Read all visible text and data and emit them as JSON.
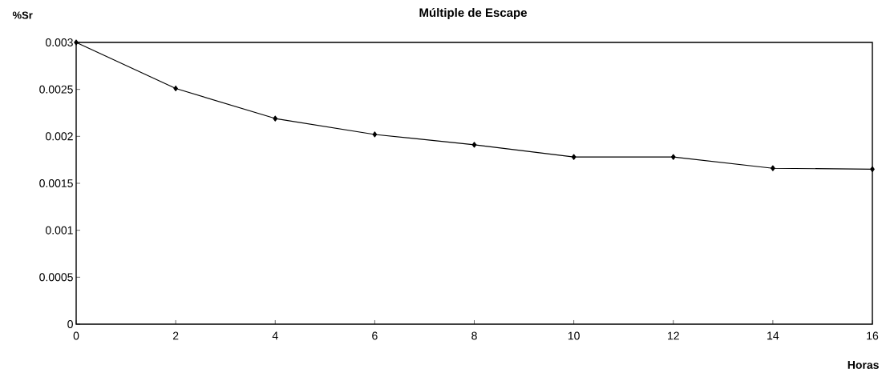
{
  "chart_data": {
    "type": "line",
    "title": "Múltiple de Escape",
    "xlabel": "Horas",
    "ylabel": "%Sr",
    "x": [
      0,
      2,
      4,
      6,
      8,
      10,
      12,
      14,
      16
    ],
    "series": [
      {
        "color": "#000000",
        "values": [
          0.003,
          0.00251,
          0.00219,
          0.00202,
          0.00191,
          0.00178,
          0.00178,
          0.00166,
          0.00165
        ]
      }
    ],
    "xlim": [
      0,
      16
    ],
    "xticks": [
      0,
      2,
      4,
      6,
      8,
      10,
      12,
      14,
      16
    ],
    "ylim": [
      0,
      0.003
    ],
    "yticks": [
      0,
      0.0005,
      0.001,
      0.0015,
      0.002,
      0.0025,
      0.003
    ],
    "grid": false,
    "marker": "diamond",
    "line_style": "solid"
  }
}
